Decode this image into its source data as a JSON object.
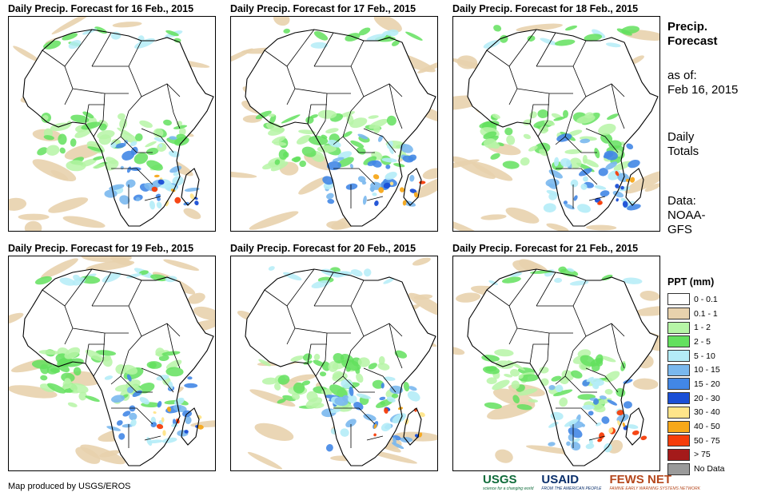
{
  "panels": [
    {
      "title": "Daily Precip. Forecast for 16 Feb., 2015"
    },
    {
      "title": "Daily Precip. Forecast for 17 Feb., 2015"
    },
    {
      "title": "Daily Precip. Forecast for 18 Feb., 2015"
    },
    {
      "title": "Daily Precip. Forecast for 19 Feb., 2015"
    },
    {
      "title": "Daily Precip. Forecast for 20 Feb., 2015"
    },
    {
      "title": "Daily Precip. Forecast for 21 Feb., 2015"
    }
  ],
  "info": {
    "title_line1": "Precip.",
    "title_line2": "Forecast",
    "asof_label": "as of:",
    "asof_date": "Feb 16, 2015",
    "totals_line1": "Daily",
    "totals_line2": "Totals",
    "data_label": "Data:",
    "data_line1": "NOAA-",
    "data_line2": "GFS"
  },
  "legend": {
    "title": "PPT (mm)",
    "items": [
      {
        "label": "0 - 0.1",
        "color": "#ffffff"
      },
      {
        "label": "0.1 - 1",
        "color": "#e8d2ad"
      },
      {
        "label": "1 - 2",
        "color": "#b6f5a6"
      },
      {
        "label": "2 - 5",
        "color": "#63e05e"
      },
      {
        "label": "5 - 10",
        "color": "#b4ecf7"
      },
      {
        "label": "10 - 15",
        "color": "#7ab8ee"
      },
      {
        "label": "15 - 20",
        "color": "#4287e6"
      },
      {
        "label": "20 - 30",
        "color": "#1a4fd6"
      },
      {
        "label": "30 - 40",
        "color": "#ffe58a"
      },
      {
        "label": "40 - 50",
        "color": "#f7a81a"
      },
      {
        "label": "50 - 75",
        "color": "#f53d0a"
      },
      {
        "label": "> 75",
        "color": "#a41a1a"
      },
      {
        "label": "No Data",
        "color": "#9a9a9a"
      }
    ]
  },
  "footer": {
    "credit": "Map produced by USGS/EROS",
    "logos": [
      {
        "name": "USGS",
        "tagline": "science for a changing world",
        "color": "#0f6b3a"
      },
      {
        "name": "USAID",
        "tagline": "FROM THE AMERICAN PEOPLE",
        "color": "#0a2f6b"
      },
      {
        "name": "FEWS NET",
        "tagline": "FAMINE EARLY WARNING SYSTEMS NETWORK",
        "color": "#b5471c"
      }
    ]
  }
}
